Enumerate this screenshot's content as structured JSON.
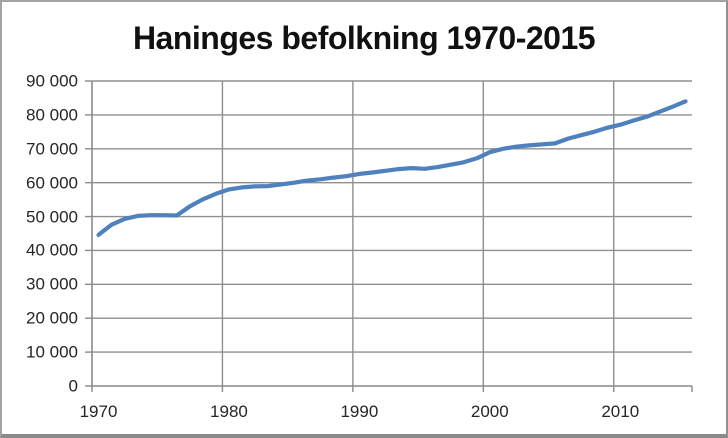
{
  "chart": {
    "title": "Haninges befolkning 1970-2015"
  },
  "chart_data": {
    "type": "line",
    "title": "Haninges befolkning 1970-2015",
    "xlabel": "",
    "ylabel": "",
    "ylim": [
      0,
      90000
    ],
    "grid": true,
    "legend": "none",
    "x": [
      1970,
      1971,
      1972,
      1973,
      1974,
      1975,
      1976,
      1977,
      1978,
      1979,
      1980,
      1981,
      1982,
      1983,
      1984,
      1985,
      1986,
      1987,
      1988,
      1989,
      1990,
      1991,
      1992,
      1993,
      1994,
      1995,
      1996,
      1997,
      1998,
      1999,
      2000,
      2001,
      2002,
      2003,
      2004,
      2005,
      2006,
      2007,
      2008,
      2009,
      2010,
      2011,
      2012,
      2013,
      2014,
      2015
    ],
    "series": [
      {
        "name": "Haninges befolkning",
        "values": [
          44600,
          47600,
          49300,
          50200,
          50400,
          50400,
          50300,
          53000,
          55100,
          56700,
          58000,
          58600,
          58900,
          59000,
          59500,
          60000,
          60600,
          61000,
          61500,
          61900,
          62600,
          63000,
          63500,
          64000,
          64300,
          64100,
          64600,
          65300,
          66000,
          67200,
          69000,
          70000,
          70600,
          71000,
          71300,
          71600,
          73000,
          74000,
          75000,
          76200,
          77100,
          78300,
          79400,
          80900,
          82400,
          84000
        ]
      }
    ],
    "y_ticks": [
      0,
      10000,
      20000,
      30000,
      40000,
      50000,
      60000,
      70000,
      80000,
      90000
    ],
    "y_tick_labels": [
      "0",
      "10 000",
      "20 000",
      "30 000",
      "40 000",
      "50 000",
      "60 000",
      "70 000",
      "80 000",
      "90 000"
    ],
    "x_tick_years": [
      1970,
      1980,
      1990,
      2000,
      2010
    ],
    "x_tick_labels": [
      "1970",
      "1980",
      "1990",
      "2000",
      "2010"
    ],
    "colors": {
      "line": "#4f81bd",
      "gridline": "#8f8f8f",
      "axis": "#8a8a8a",
      "tick_label": "#262626",
      "title": "#111111",
      "background": "#ffffff",
      "frame_border": "#8f8f8f"
    }
  }
}
